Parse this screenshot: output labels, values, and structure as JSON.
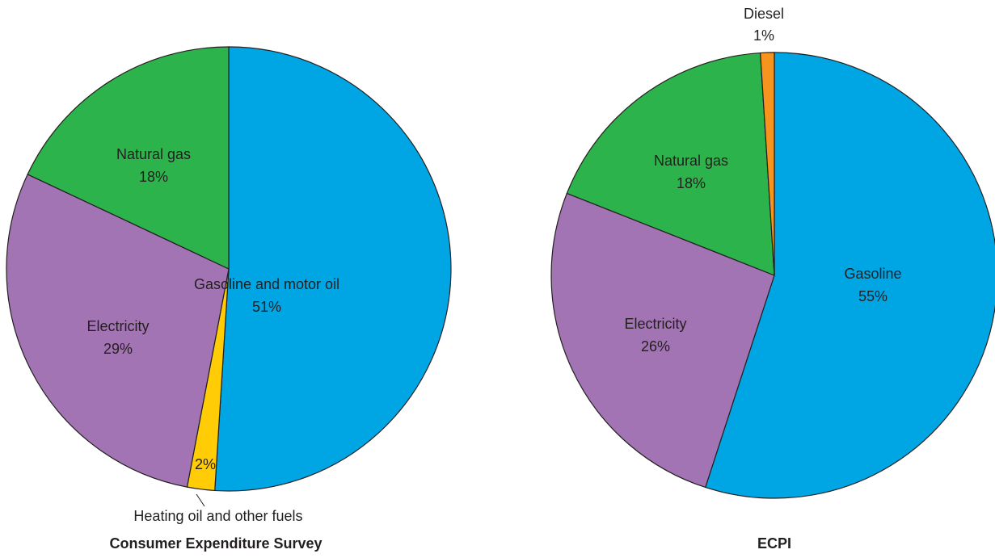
{
  "chart_data": [
    {
      "type": "pie",
      "title": "Consumer Expenditure Survey",
      "slices": [
        {
          "name": "Gasoline and motor oil",
          "value_label": "51%",
          "value": 51,
          "color": "#00a6e4"
        },
        {
          "name": "Heating oil and other fuels",
          "value_label": "2%",
          "value": 2,
          "color": "#ffcc05"
        },
        {
          "name": "Electricity",
          "value_label": "29%",
          "value": 29,
          "color": "#a374b3"
        },
        {
          "name": "Natural gas",
          "value_label": "18%",
          "value": 18,
          "color": "#2db34b"
        }
      ]
    },
    {
      "type": "pie",
      "title": "ECPI",
      "slices": [
        {
          "name": "Gasoline",
          "value_label": "55%",
          "value": 55,
          "color": "#00a6e4"
        },
        {
          "name": "Electricity",
          "value_label": "26%",
          "value": 26,
          "color": "#a374b3"
        },
        {
          "name": "Natural gas",
          "value_label": "18%",
          "value": 18,
          "color": "#2db34b"
        },
        {
          "name": "Diesel",
          "value_label": "1%",
          "value": 1,
          "color": "#f7941e"
        }
      ]
    }
  ]
}
